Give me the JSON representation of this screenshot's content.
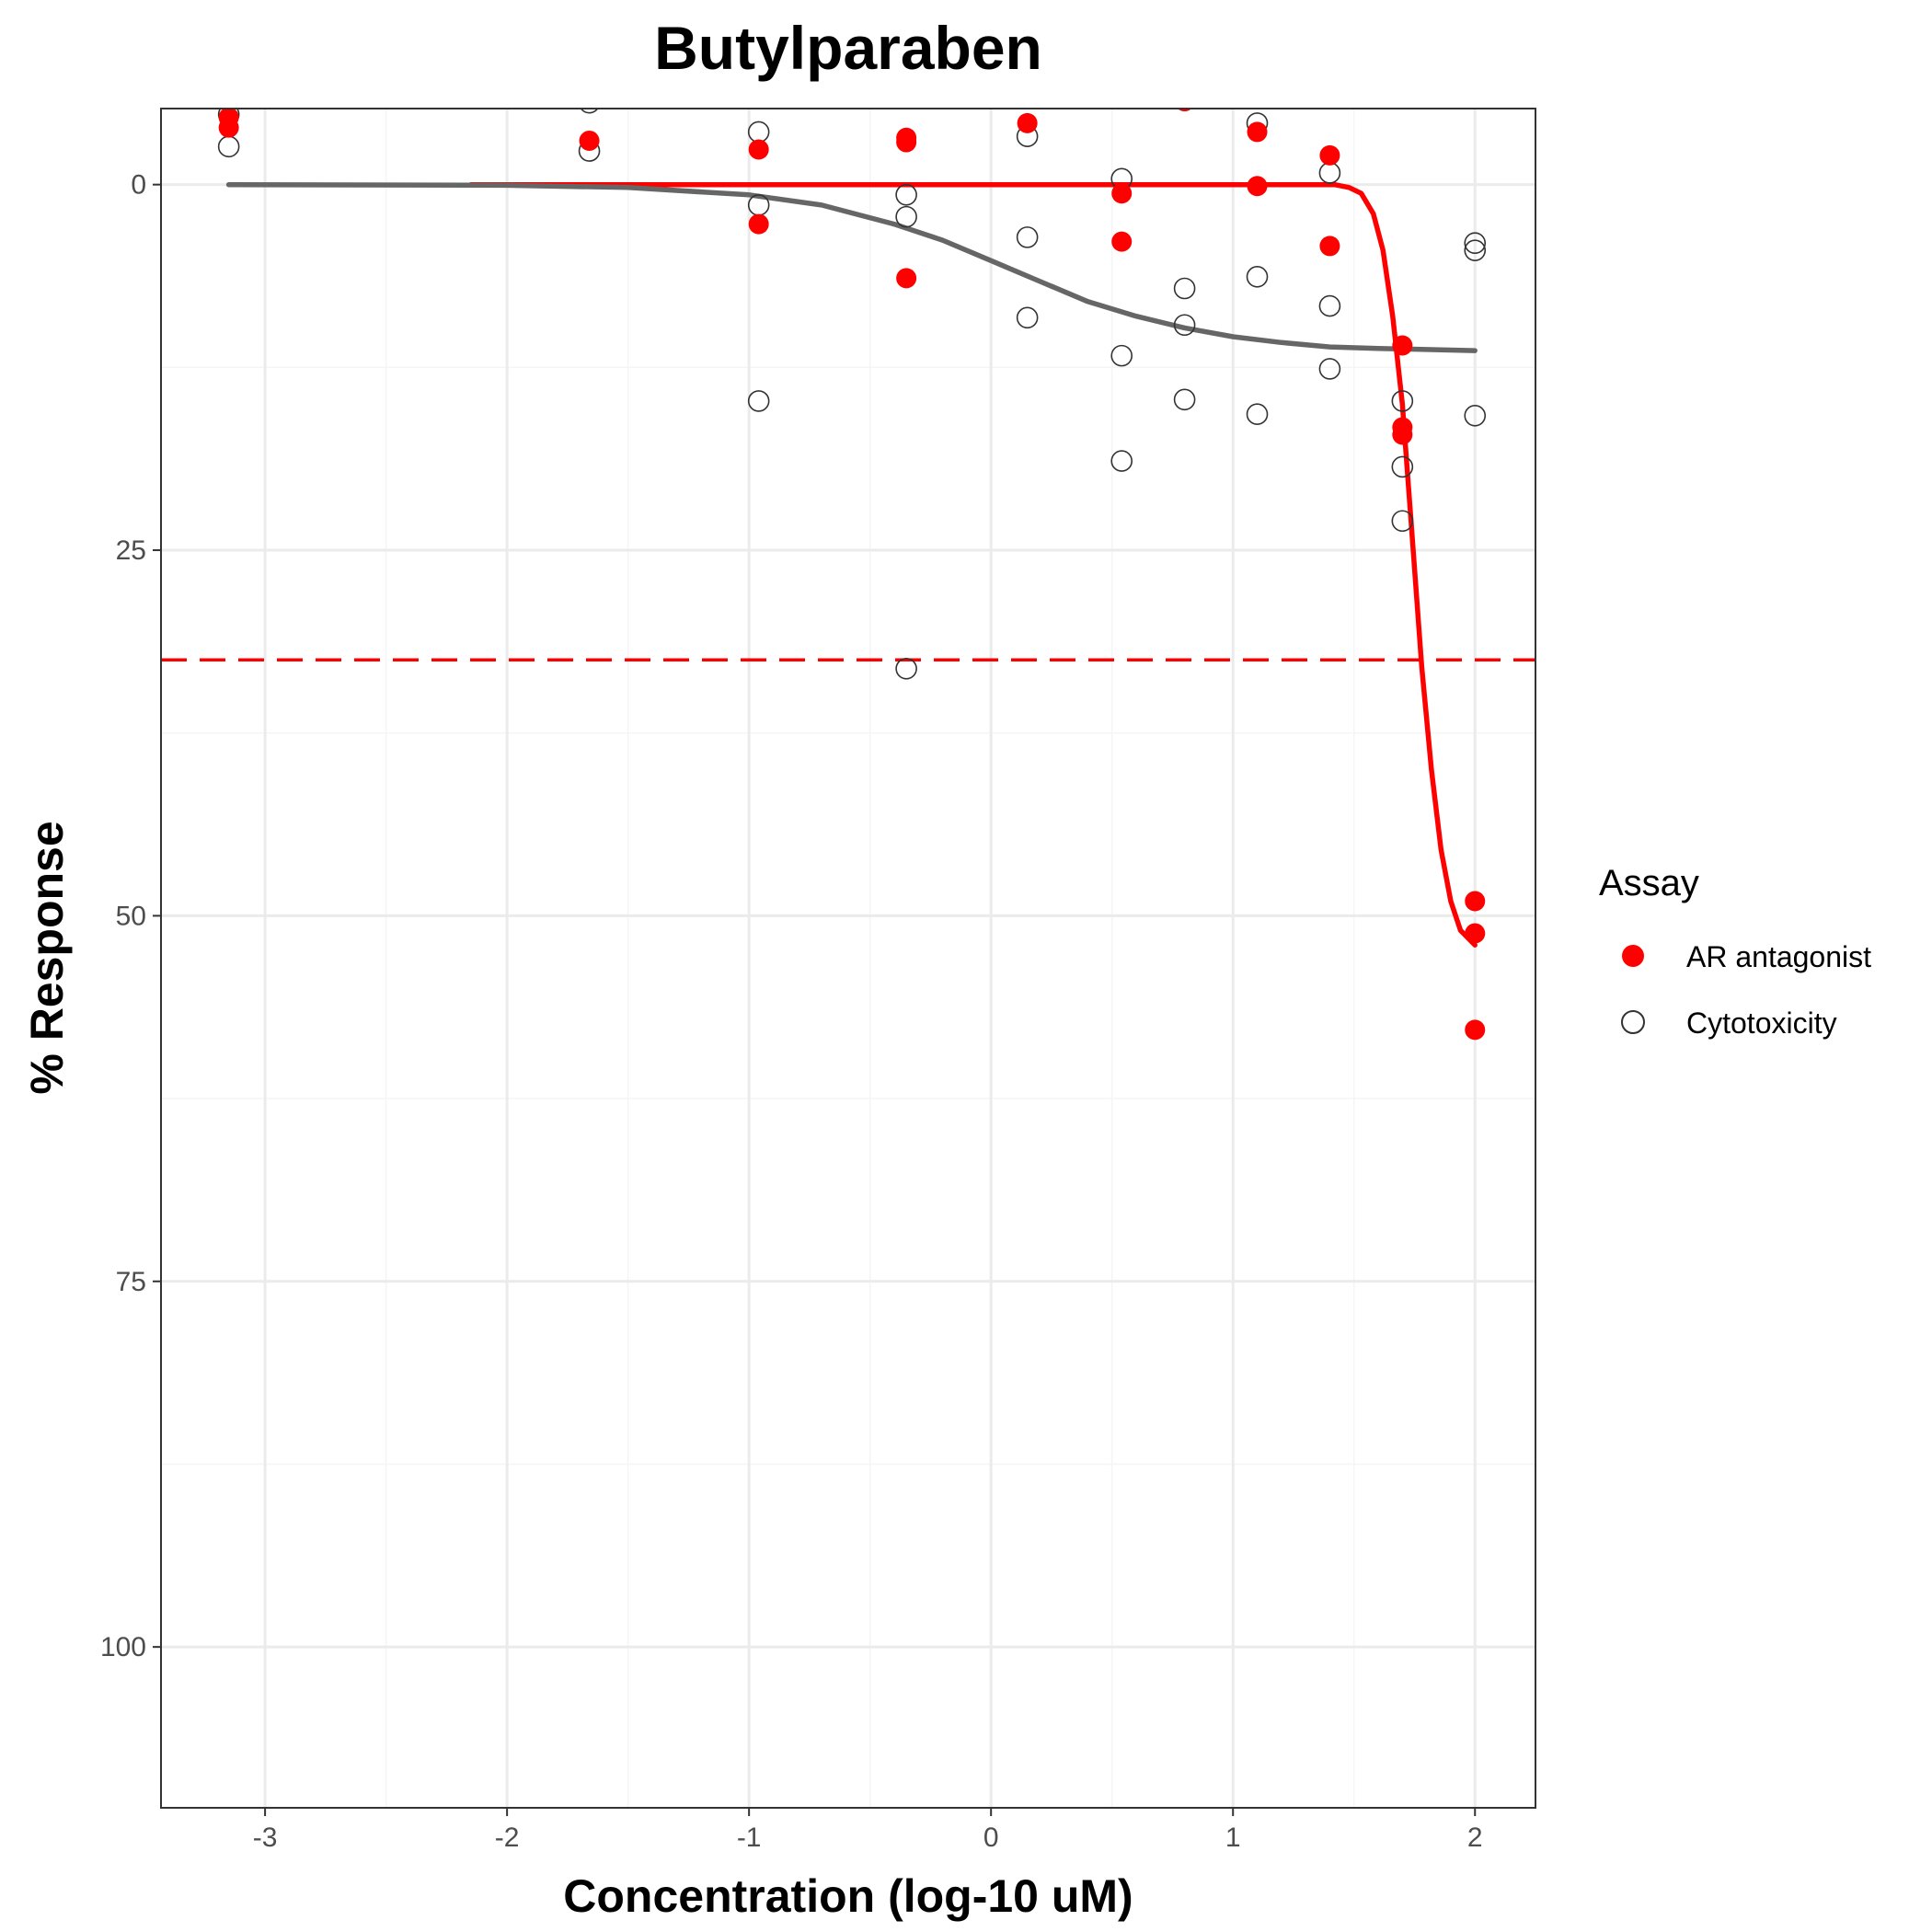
{
  "chart_data": {
    "type": "scatter",
    "title": "Butylparaben",
    "xlabel": "Concentration (log-10 uM)",
    "ylabel": "% Response",
    "xlim": [
      -3.43,
      2.25
    ],
    "ylim": [
      -5.2,
      111
    ],
    "y_reversed": true,
    "x_ticks": [
      -3,
      -2,
      -1,
      0,
      1,
      2
    ],
    "x_tick_labels": [
      "-3",
      "-2",
      "-1",
      "0",
      "1",
      "2"
    ],
    "y_ticks": [
      0,
      25,
      50,
      75,
      100
    ],
    "y_tick_labels": [
      "0",
      "25",
      "50",
      "75",
      "100"
    ],
    "grid": true,
    "legend_title": "Assay",
    "legend_position": "right",
    "threshold": {
      "y": 32.5,
      "color": "#ff0000",
      "style": "dashed"
    },
    "series": [
      {
        "name": "AR antagonist",
        "marker": "filled-circle",
        "color": "#ff0000",
        "points": [
          {
            "x": -3.15,
            "y": -4.6
          },
          {
            "x": -3.15,
            "y": -3.9
          },
          {
            "x": -1.66,
            "y": -3.0
          },
          {
            "x": -0.96,
            "y": -2.4
          },
          {
            "x": -0.96,
            "y": 2.7
          },
          {
            "x": -0.35,
            "y": -3.2
          },
          {
            "x": -0.35,
            "y": -2.9
          },
          {
            "x": -0.35,
            "y": 6.4
          },
          {
            "x": 0.15,
            "y": -4.2
          },
          {
            "x": 0.54,
            "y": 0.6
          },
          {
            "x": 0.54,
            "y": 3.9
          },
          {
            "x": 0.8,
            "y": -5.7
          },
          {
            "x": 1.1,
            "y": -3.6
          },
          {
            "x": 1.1,
            "y": 0.1
          },
          {
            "x": 1.4,
            "y": -2.0
          },
          {
            "x": 1.4,
            "y": 4.2
          },
          {
            "x": 1.7,
            "y": 11.0
          },
          {
            "x": 1.7,
            "y": 16.6
          },
          {
            "x": 1.7,
            "y": 17.1
          },
          {
            "x": 2.0,
            "y": 49.0
          },
          {
            "x": 2.0,
            "y": 51.2
          },
          {
            "x": 2.0,
            "y": 57.8
          }
        ],
        "curve": [
          [
            -2.15,
            0
          ],
          [
            1.42,
            0
          ],
          [
            1.48,
            0.2
          ],
          [
            1.53,
            0.6
          ],
          [
            1.58,
            2.0
          ],
          [
            1.62,
            4.5
          ],
          [
            1.66,
            9.0
          ],
          [
            1.7,
            15.0
          ],
          [
            1.74,
            24.0
          ],
          [
            1.78,
            33.0
          ],
          [
            1.82,
            40.0
          ],
          [
            1.86,
            45.5
          ],
          [
            1.9,
            49.0
          ],
          [
            1.94,
            51.0
          ],
          [
            2.0,
            52.0
          ]
        ]
      },
      {
        "name": "Cytotoxicity",
        "marker": "open-circle",
        "color": "#4d4d4d",
        "points": [
          {
            "x": -3.15,
            "y": -4.8
          },
          {
            "x": -3.15,
            "y": -2.6
          },
          {
            "x": -1.66,
            "y": -5.6
          },
          {
            "x": -1.66,
            "y": -2.3
          },
          {
            "x": -0.96,
            "y": -3.6
          },
          {
            "x": -0.96,
            "y": 1.4
          },
          {
            "x": -0.96,
            "y": 14.8
          },
          {
            "x": -0.35,
            "y": 0.7
          },
          {
            "x": -0.35,
            "y": 2.2
          },
          {
            "x": -0.35,
            "y": 33.1
          },
          {
            "x": 0.15,
            "y": -3.3
          },
          {
            "x": 0.15,
            "y": 3.6
          },
          {
            "x": 0.15,
            "y": 9.1
          },
          {
            "x": 0.54,
            "y": -0.4
          },
          {
            "x": 0.54,
            "y": 11.7
          },
          {
            "x": 0.54,
            "y": 18.9
          },
          {
            "x": 0.8,
            "y": 7.1
          },
          {
            "x": 0.8,
            "y": 9.6
          },
          {
            "x": 0.8,
            "y": 14.7
          },
          {
            "x": 1.1,
            "y": -4.2
          },
          {
            "x": 1.1,
            "y": 6.3
          },
          {
            "x": 1.1,
            "y": 15.7
          },
          {
            "x": 1.4,
            "y": -0.8
          },
          {
            "x": 1.4,
            "y": 8.3
          },
          {
            "x": 1.4,
            "y": 12.6
          },
          {
            "x": 1.7,
            "y": 14.8
          },
          {
            "x": 1.7,
            "y": 19.3
          },
          {
            "x": 1.7,
            "y": 23.0
          },
          {
            "x": 2.0,
            "y": 4.0
          },
          {
            "x": 2.0,
            "y": 4.5
          },
          {
            "x": 2.0,
            "y": 15.8
          }
        ],
        "curve": [
          [
            -3.15,
            0
          ],
          [
            -2.0,
            0.05
          ],
          [
            -1.5,
            0.2
          ],
          [
            -1.0,
            0.7
          ],
          [
            -0.7,
            1.4
          ],
          [
            -0.4,
            2.7
          ],
          [
            -0.2,
            3.8
          ],
          [
            0.0,
            5.2
          ],
          [
            0.2,
            6.6
          ],
          [
            0.4,
            8.0
          ],
          [
            0.6,
            9.0
          ],
          [
            0.8,
            9.8
          ],
          [
            1.0,
            10.4
          ],
          [
            1.2,
            10.8
          ],
          [
            1.4,
            11.1
          ],
          [
            1.6,
            11.2
          ],
          [
            2.0,
            11.35
          ]
        ]
      }
    ]
  },
  "colors": {
    "panel_border": "#333333",
    "grid_major": "#ebebeb",
    "grid_minor": "#f5f5f5",
    "red_curve": "#ff0000",
    "gray_curve": "#666666"
  }
}
